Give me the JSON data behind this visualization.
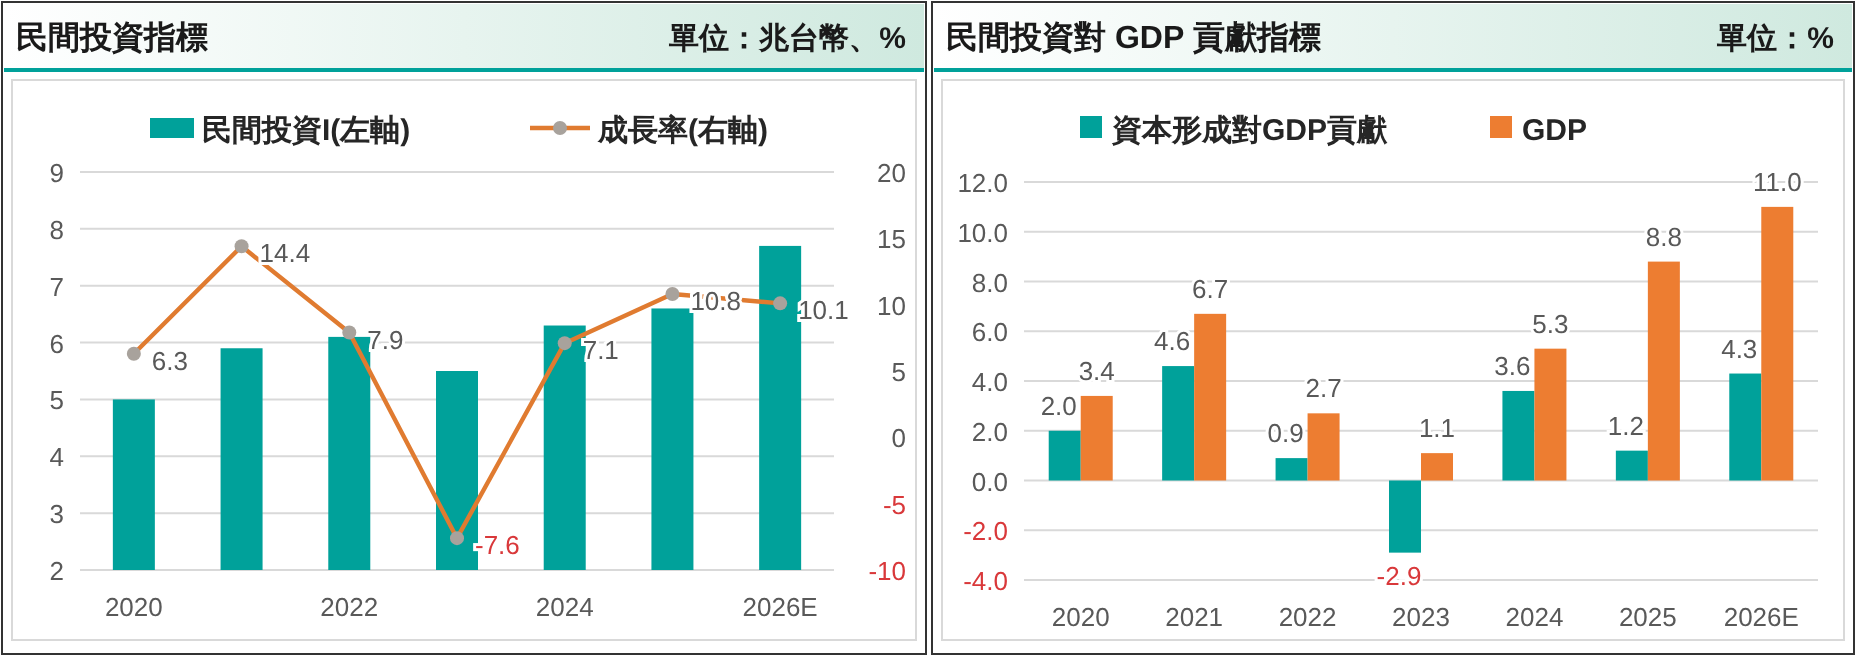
{
  "chart_data": [
    {
      "type": "bar",
      "title": "民間投資指標",
      "subtitle": "單位：兆台幣、%",
      "categories": [
        "2020",
        null,
        "2022",
        null,
        "2024",
        null,
        "2026E"
      ],
      "series": [
        {
          "name": "民間投資I(左軸)",
          "color": "#00a19a",
          "values": [
            5.0,
            5.9,
            6.1,
            5.5,
            6.3,
            6.6,
            7.7
          ]
        },
        {
          "name": "成長率(右軸)",
          "type": "line",
          "axis": "y2",
          "color": "#e07b30",
          "values": [
            6.3,
            14.4,
            7.9,
            -7.6,
            7.1,
            10.8,
            10.1
          ],
          "value_labels": [
            "6.3",
            "14.4",
            "7.9",
            "-7.6",
            "7.1",
            "10.8",
            "10.1"
          ]
        }
      ],
      "ylim": [
        2,
        9
      ],
      "yticks": [
        2,
        3,
        4,
        5,
        6,
        7,
        8,
        9
      ],
      "y2lim": [
        -10,
        20
      ],
      "y2ticks": [
        -10,
        -5,
        0,
        5,
        10,
        15,
        20
      ],
      "marker": "circle",
      "grid": "y",
      "legend": "top"
    },
    {
      "type": "bar",
      "title": "民間投資對 GDP 貢獻指標",
      "subtitle": "單位：%",
      "categories": [
        "2020",
        "2021",
        "2022",
        "2023",
        "2024",
        "2025",
        "2026E"
      ],
      "series": [
        {
          "name": "資本形成對GDP貢獻",
          "color": "#00a19a",
          "values": [
            2.0,
            4.6,
            0.9,
            -2.9,
            3.6,
            1.2,
            4.3
          ],
          "value_labels": [
            "2.0",
            "4.6",
            "0.9",
            "-2.9",
            "3.6",
            "1.2",
            "4.3"
          ]
        },
        {
          "name": "GDP",
          "color": "#ed7d31",
          "values": [
            3.4,
            6.7,
            2.7,
            1.1,
            5.3,
            8.8,
            11.0
          ],
          "value_labels": [
            "3.4",
            "6.7",
            "2.7",
            "1.1",
            "5.3",
            "8.8",
            "11.0"
          ]
        }
      ],
      "ylim": [
        -4,
        12
      ],
      "yticks": [
        {
          "value": -4,
          "label": "-4.0"
        },
        {
          "value": -2,
          "label": "-2.0"
        },
        {
          "value": 0,
          "label": "0.0"
        },
        {
          "value": 2,
          "label": "2.0"
        },
        {
          "value": 4,
          "label": "4.0"
        },
        {
          "value": 6,
          "label": "6.0"
        },
        {
          "value": 8,
          "label": "8.0"
        },
        {
          "value": 10,
          "label": "10.0"
        },
        {
          "value": 12,
          "label": "12.0"
        }
      ],
      "grid": "y",
      "legend": "top"
    }
  ]
}
